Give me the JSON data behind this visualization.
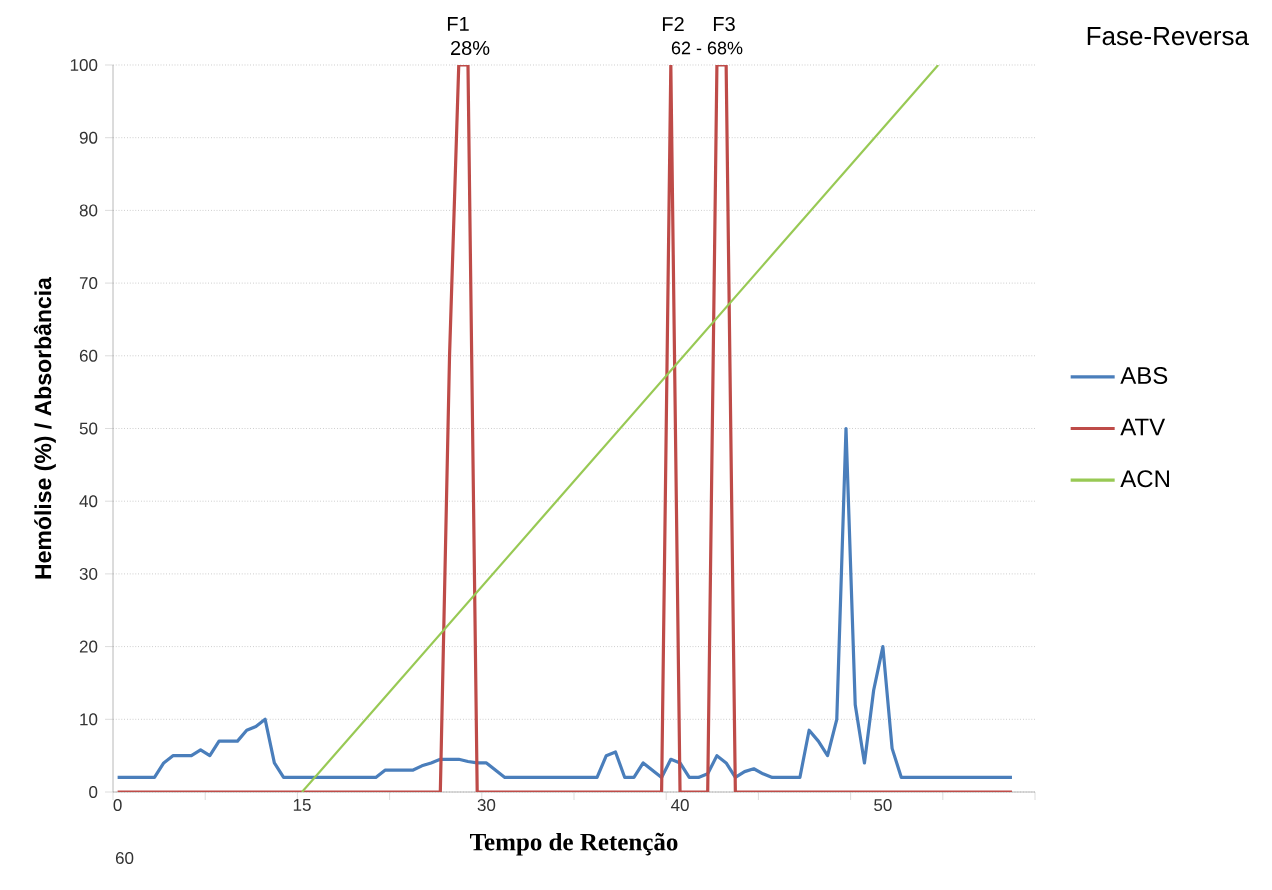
{
  "chart_data": {
    "type": "line",
    "title": "Fase-Reversa",
    "xlabel": "Tempo de Retenção",
    "ylabel": "Hemólise  (%) / Absorbância",
    "categories": [
      "0",
      null,
      null,
      null,
      null,
      null,
      null,
      null,
      null,
      null,
      null,
      null,
      null,
      null,
      null,
      null,
      null,
      null,
      null,
      null,
      "15",
      null,
      null,
      null,
      null,
      null,
      null,
      null,
      null,
      null,
      null,
      null,
      null,
      null,
      null,
      null,
      null,
      null,
      null,
      null,
      "30",
      null,
      null,
      null,
      null,
      null,
      null,
      null,
      null,
      null,
      null,
      null,
      null,
      null,
      null,
      null,
      null,
      null,
      null,
      null,
      null,
      "40",
      null,
      null,
      null,
      null,
      null,
      null,
      null,
      null,
      null,
      null,
      null,
      null,
      null,
      null,
      null,
      null,
      null,
      null,
      null,
      null,
      null,
      "50",
      null,
      null,
      null,
      null,
      null,
      null,
      null,
      null,
      null,
      null,
      null,
      null,
      null,
      null,
      null,
      null
    ],
    "series": [
      {
        "name": "ABS",
        "color": "#4a7ebb",
        "values": [
          2,
          2,
          2,
          2,
          2,
          4,
          5,
          5,
          5,
          5.8,
          5,
          7,
          7,
          7,
          8.5,
          9,
          10,
          4,
          2,
          2,
          2,
          2,
          2,
          2,
          2,
          2,
          2,
          2,
          2,
          3,
          3,
          3,
          3,
          3.6,
          4,
          4.5,
          4.5,
          4.5,
          4.2,
          4,
          4,
          3,
          2,
          2,
          2,
          2,
          2,
          2,
          2,
          2,
          2,
          2,
          2,
          5,
          5.5,
          2,
          2,
          4,
          3,
          2,
          4.5,
          4,
          2,
          2,
          2.5,
          5,
          4,
          2,
          2.8,
          3.2,
          2.5,
          2,
          2,
          2,
          2,
          8.5,
          7,
          5,
          10,
          50,
          12,
          4,
          14,
          20,
          6,
          2,
          2,
          2,
          2,
          2,
          2,
          2,
          2,
          2,
          2,
          2,
          2,
          2,
          null,
          null
        ]
      },
      {
        "name": "ATV",
        "color": "#be4b48",
        "values": [
          0,
          0,
          0,
          0,
          0,
          0,
          0,
          0,
          0,
          0,
          0,
          0,
          0,
          0,
          0,
          0,
          0,
          0,
          0,
          0,
          0,
          0,
          0,
          0,
          0,
          0,
          0,
          0,
          0,
          0,
          0,
          0,
          0,
          0,
          0,
          0,
          60,
          100,
          100,
          0,
          0,
          0,
          0,
          0,
          0,
          0,
          0,
          0,
          0,
          0,
          0,
          0,
          0,
          0,
          0,
          0,
          0,
          0,
          0,
          0,
          100,
          0,
          0,
          0,
          0,
          100,
          100,
          0,
          0,
          0,
          0,
          0,
          0,
          0,
          0,
          0,
          0,
          0,
          0,
          0,
          0,
          0,
          0,
          0,
          0,
          0,
          0,
          0,
          0,
          0,
          0,
          0,
          0,
          0,
          0,
          0,
          0,
          0,
          null,
          null
        ]
      },
      {
        "name": "ACN",
        "color": "#98c954",
        "values": [
          null,
          null,
          null,
          null,
          null,
          null,
          null,
          null,
          null,
          null,
          null,
          null,
          null,
          null,
          null,
          null,
          null,
          null,
          null,
          null,
          0,
          null,
          null,
          null,
          null,
          null,
          null,
          null,
          null,
          null,
          null,
          null,
          null,
          null,
          null,
          null,
          null,
          null,
          null,
          null,
          null,
          null,
          null,
          null,
          null,
          null,
          null,
          null,
          null,
          null,
          null,
          null,
          null,
          null,
          null,
          null,
          null,
          null,
          null,
          null,
          null,
          null,
          null,
          null,
          null,
          null,
          null,
          null,
          null,
          null,
          null,
          null,
          null,
          null,
          null,
          null,
          null,
          null,
          null,
          null,
          null,
          null,
          null,
          null,
          null,
          null,
          null,
          null,
          null,
          100,
          null,
          null,
          null,
          null,
          null,
          null,
          null,
          null,
          null,
          null
        ]
      }
    ],
    "ylim": [
      0,
      100
    ],
    "yticks": [
      0,
      10,
      20,
      30,
      40,
      50,
      60,
      70,
      80,
      90,
      100
    ],
    "grid": "y",
    "legend": "right",
    "marker": "none",
    "line_style": "solid",
    "annotations": [
      "F1",
      "28%",
      "F2",
      "F3",
      "62 - 68%",
      "60"
    ]
  }
}
